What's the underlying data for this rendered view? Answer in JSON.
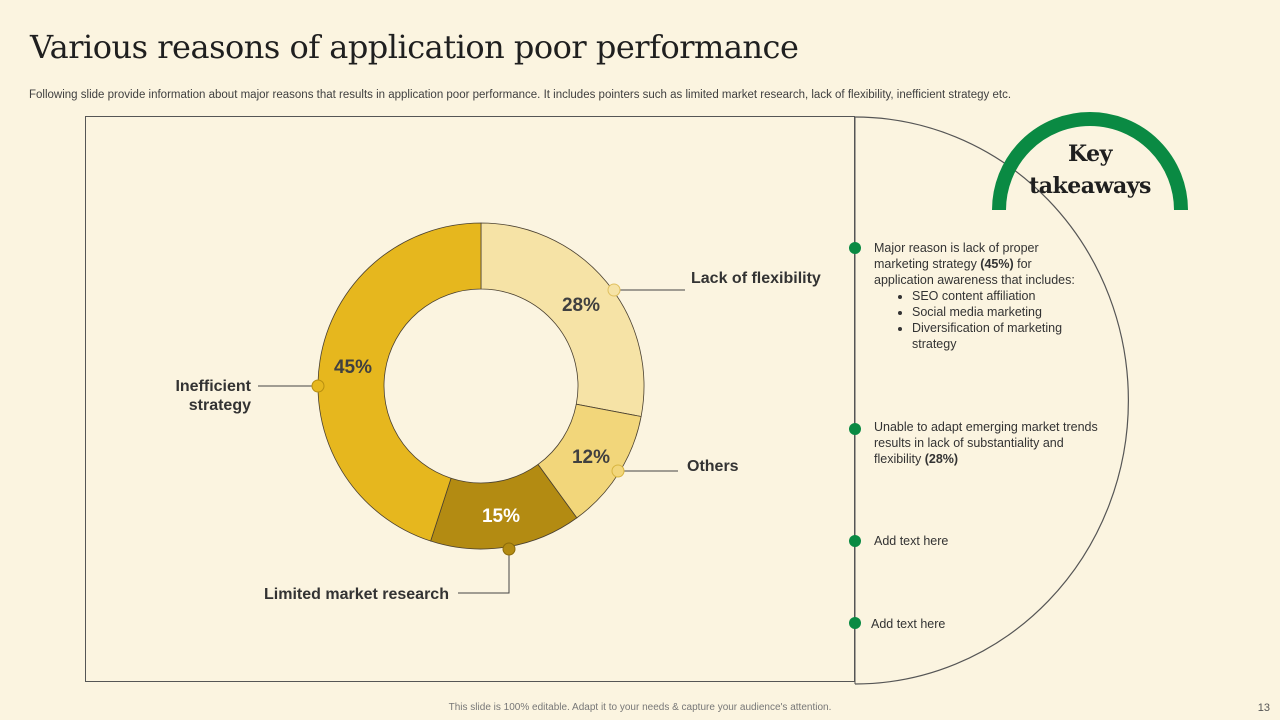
{
  "title": "Various reasons of application poor performance",
  "subtitle": "Following slide provide information about major reasons that results in application poor performance. It includes pointers such as limited market research, lack of flexibility, inefficient strategy etc.",
  "chart_data": {
    "type": "pie",
    "variant": "donut",
    "title": "",
    "slices": [
      {
        "name": "Lack of flexibility",
        "value": 28,
        "label": "28%",
        "color": "#f6e3a6"
      },
      {
        "name": "Others",
        "value": 12,
        "label": "12%",
        "color": "#f2d67a"
      },
      {
        "name": "Limited market research",
        "value": 15,
        "label": "15%",
        "color": "#b38b12"
      },
      {
        "name": "Inefficient strategy",
        "value": 45,
        "label": "45%",
        "color": "#e6b71e"
      }
    ]
  },
  "labels": {
    "lack_of_flexibility": "Lack of flexibility",
    "others": "Others",
    "limited_market_research": "Limited market research",
    "inefficient_strategy_line1": "Inefficient",
    "inefficient_strategy_line2": "strategy"
  },
  "key_takeaways": {
    "title_line1": "Key",
    "title_line2": "takeaways",
    "accent_color": "#0a8a43",
    "point1": {
      "text_a": "Major reason is lack of proper marketing strategy ",
      "bold": "(45%)",
      "text_b": " for application awareness that includes:",
      "bullets": [
        "SEO content affiliation",
        "Social media marketing",
        "Diversification of marketing strategy"
      ]
    },
    "point2": {
      "text": "Unable to adapt emerging market trends results in lack of substantiality and flexibility ",
      "bold": "(28%)"
    },
    "point3": "Add text here",
    "point4": "Add text here"
  },
  "footer": "This slide is 100% editable. Adapt it to your needs & capture your audience's attention.",
  "page_number": "13"
}
